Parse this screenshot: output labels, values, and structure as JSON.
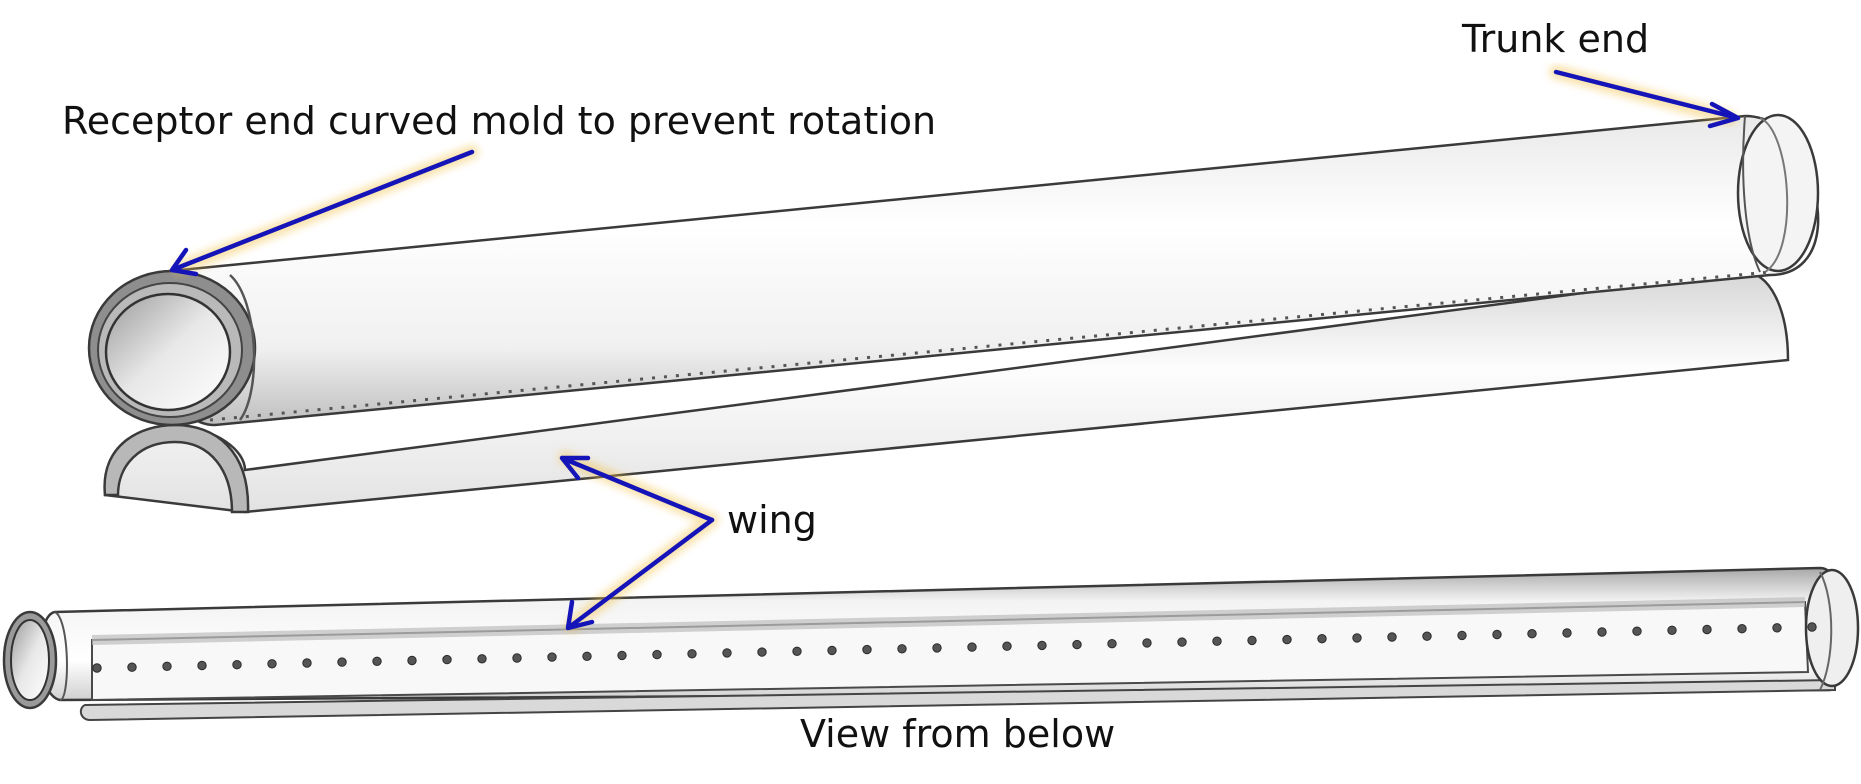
{
  "labels": {
    "trunk_end": "Trunk end",
    "receptor_end": "Receptor end curved mold to prevent rotation",
    "wing": "wing",
    "view_from_below": "View from below"
  },
  "colors": {
    "arrow": "#1414b8",
    "glow": "#f3c24a",
    "tube_light": "#fbfbfb",
    "tube_dark": "#bdbdbd",
    "outline": "#3a3a3a"
  },
  "bottom_view": {
    "hole_count": 50
  }
}
